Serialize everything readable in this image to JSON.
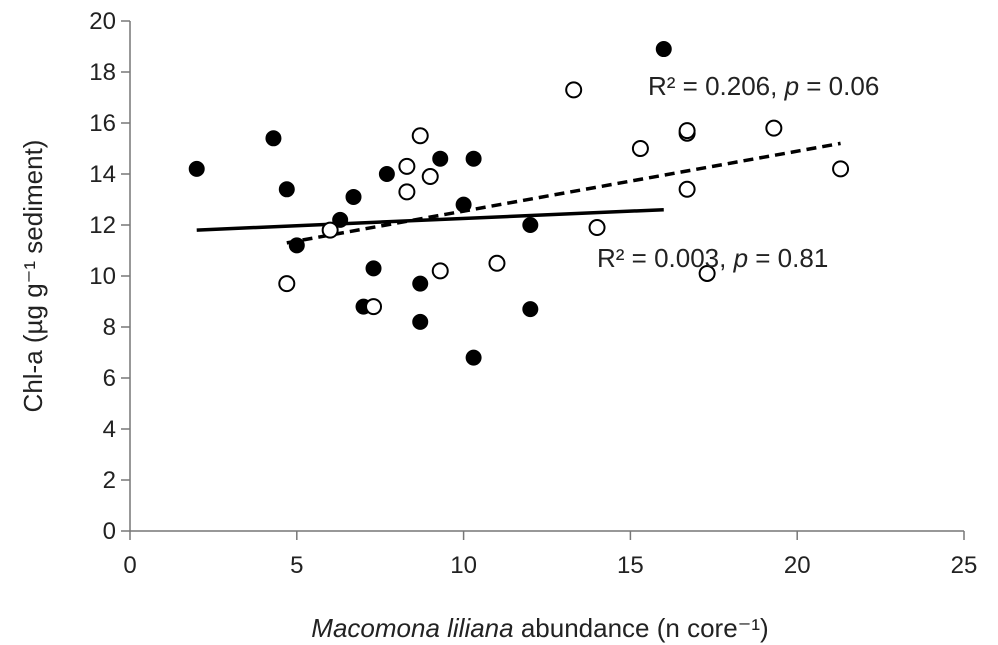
{
  "chart_data": {
    "type": "scatter",
    "xlabel": {
      "italic": "Macomona liliana",
      "rest": " abundance (n core⁻¹)"
    },
    "ylabel": "Chl-a (µg g⁻¹ sediment)",
    "xlim": [
      0,
      25
    ],
    "ylim": [
      0,
      20
    ],
    "x_ticks": [
      0,
      5,
      10,
      15,
      20,
      25
    ],
    "y_ticks": [
      0,
      2,
      4,
      6,
      8,
      10,
      12,
      14,
      16,
      18,
      20
    ],
    "grid": false,
    "series": [
      {
        "marker": "filled-circle",
        "color": "#000000",
        "points": [
          [
            2.0,
            14.2
          ],
          [
            4.3,
            15.4
          ],
          [
            4.7,
            13.4
          ],
          [
            5.0,
            11.2
          ],
          [
            6.3,
            12.2
          ],
          [
            6.7,
            13.1
          ],
          [
            7.0,
            8.8
          ],
          [
            7.3,
            10.3
          ],
          [
            7.7,
            14.0
          ],
          [
            8.7,
            9.7
          ],
          [
            8.7,
            8.2
          ],
          [
            9.3,
            14.6
          ],
          [
            10.0,
            12.8
          ],
          [
            10.3,
            14.6
          ],
          [
            10.3,
            6.8
          ],
          [
            12.0,
            12.0
          ],
          [
            12.0,
            8.7
          ],
          [
            16.0,
            18.9
          ]
        ],
        "trendline": {
          "style": "solid",
          "x": [
            2.0,
            16.0
          ],
          "y": [
            11.8,
            12.6
          ]
        }
      },
      {
        "marker": "open-circle",
        "color": "#000000",
        "points": [
          [
            4.7,
            9.7
          ],
          [
            6.0,
            11.8
          ],
          [
            7.3,
            8.8
          ],
          [
            8.3,
            14.3
          ],
          [
            8.3,
            13.3
          ],
          [
            8.7,
            15.5
          ],
          [
            9.0,
            13.9
          ],
          [
            9.3,
            10.2
          ],
          [
            11.0,
            10.5
          ],
          [
            13.3,
            17.3
          ],
          [
            14.0,
            11.9
          ],
          [
            15.3,
            15.0
          ],
          [
            16.7,
            15.6
          ],
          [
            16.7,
            15.7
          ],
          [
            16.7,
            13.4
          ],
          [
            17.3,
            10.1
          ],
          [
            19.3,
            15.8
          ],
          [
            21.3,
            14.2
          ]
        ],
        "trendline": {
          "style": "dashed",
          "x": [
            4.7,
            21.3
          ],
          "y": [
            11.3,
            15.2
          ]
        }
      }
    ],
    "annotations": [
      {
        "id": "upper",
        "prefix": "R² = 0.206, ",
        "p_symbol": "p",
        "suffix": " = 0.06"
      },
      {
        "id": "lower",
        "prefix": "R² = 0.003, ",
        "p_symbol": "p",
        "suffix": " = 0.81"
      }
    ]
  }
}
